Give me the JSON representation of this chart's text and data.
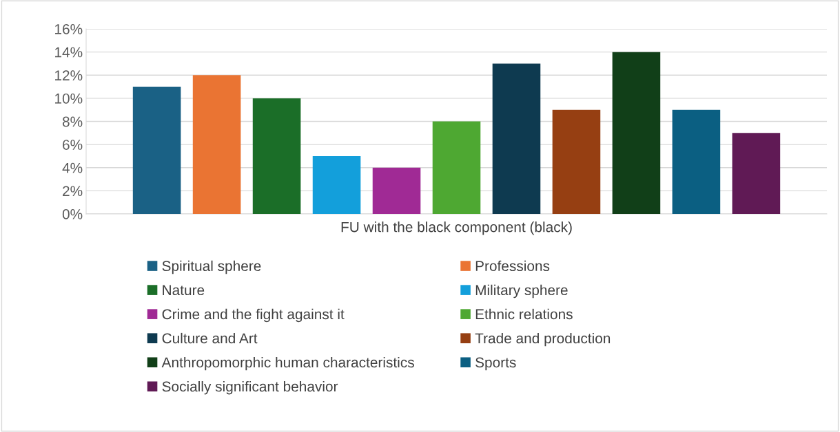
{
  "chart_data": {
    "type": "bar",
    "categories": [
      "FU with the black component (black)"
    ],
    "series": [
      {
        "name": "Spiritual sphere",
        "color": "#1a6185",
        "values": [
          11
        ]
      },
      {
        "name": "Professions",
        "color": "#ea7433",
        "values": [
          12
        ]
      },
      {
        "name": "Nature",
        "color": "#1b6e28",
        "values": [
          10
        ]
      },
      {
        "name": "Military sphere",
        "color": "#139fdb",
        "values": [
          5
        ]
      },
      {
        "name": "Crime and the fight against it",
        "color": "#a02a95",
        "values": [
          4
        ]
      },
      {
        "name": "Ethnic relations",
        "color": "#4ea832",
        "values": [
          8
        ]
      },
      {
        "name": "Culture and Art",
        "color": "#0e3a50",
        "values": [
          13
        ]
      },
      {
        "name": "Trade and production",
        "color": "#963f12",
        "values": [
          9
        ]
      },
      {
        "name": "Anthropomorphic human characteristics",
        "color": "#113f18",
        "values": [
          14
        ]
      },
      {
        "name": "Sports",
        "color": "#0b5f82",
        "values": [
          9
        ]
      },
      {
        "name": "Socially significant behavior",
        "color": "#601a55",
        "values": [
          7
        ]
      }
    ],
    "ylim": [
      0,
      16
    ],
    "yticks": [
      {
        "value": 0,
        "label": "0%"
      },
      {
        "value": 2,
        "label": "2%"
      },
      {
        "value": 4,
        "label": "4%"
      },
      {
        "value": 6,
        "label": "6%"
      },
      {
        "value": 8,
        "label": "8%"
      },
      {
        "value": 10,
        "label": "10%"
      },
      {
        "value": 12,
        "label": "12%"
      },
      {
        "value": 14,
        "label": "14%"
      },
      {
        "value": 16,
        "label": "16%"
      }
    ],
    "grid": "y",
    "legend": "bottom"
  }
}
